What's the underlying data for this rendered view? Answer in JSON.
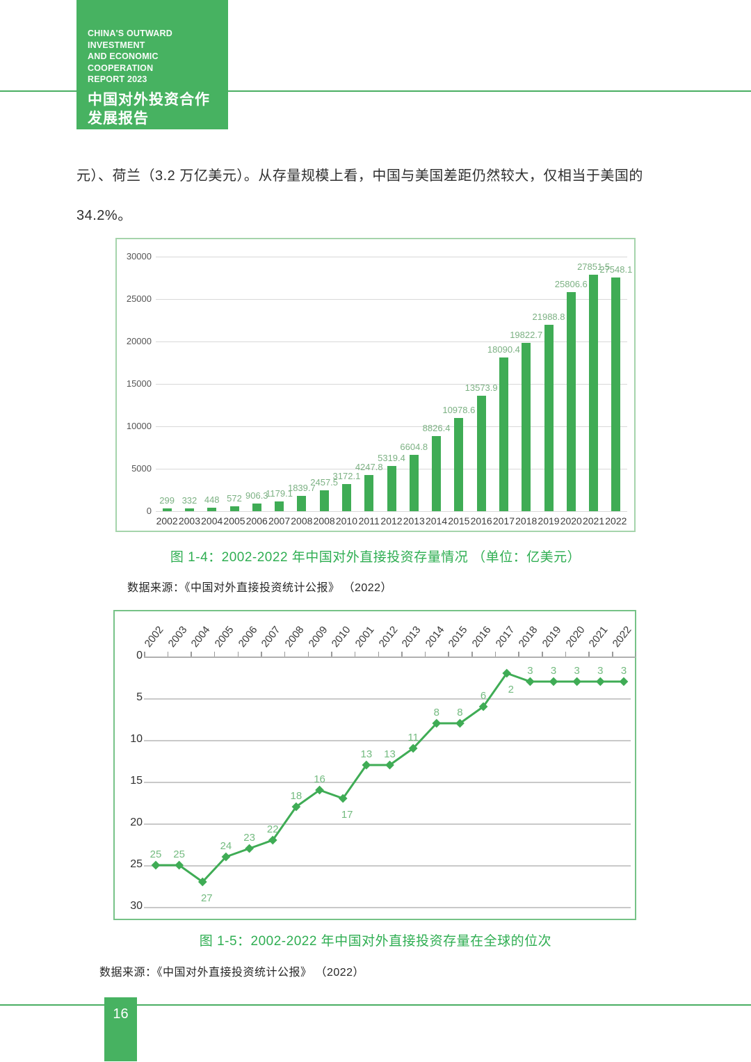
{
  "header": {
    "title_en_line1": "CHINA'S OUTWARD INVESTMENT",
    "title_en_line2": "AND ECONOMIC COOPERATION",
    "title_en_line3": "REPORT 2023",
    "title_cn_line1": "中国对外投资合作",
    "title_cn_line2": "发展报告",
    "year": "2023"
  },
  "body": {
    "paragraph_line1": "元）、荷兰（3.2 万亿美元）。从存量规模上看，中国与美国差距仍然较大，仅相当于美国的",
    "paragraph_line2": "34.2%。"
  },
  "figure1": {
    "caption": "图 1-4：2002-2022 年中国对外直接投资存量情况 （单位：亿美元）",
    "source": "数据来源：《中国对外直接投资统计公报》 （2022）"
  },
  "figure2": {
    "caption": "图 1-5：2002-2022 年中国对外直接投资存量在全球的位次",
    "source": "数据来源：《中国对外直接投资统计公报》 （2022）"
  },
  "footer": {
    "page_number": "16"
  },
  "colors": {
    "brand_green": "#47b261",
    "bar_green": "#3fac55",
    "value_label_green": "#7cb183",
    "caption_green": "#2fae52",
    "gridline_gray": "#d8d8d8"
  },
  "chart_data": [
    {
      "type": "bar",
      "title": "图 1-4：2002-2022 年中国对外直接投资存量情况（单位：亿美元）",
      "categories": [
        "2002",
        "2003",
        "2004",
        "2005",
        "2006",
        "2007",
        "2008",
        "2008",
        "2010",
        "2011",
        "2012",
        "2013",
        "2014",
        "2015",
        "2016",
        "2017",
        "2018",
        "2019",
        "2020",
        "2021",
        "2022"
      ],
      "values": [
        299,
        332,
        448,
        572,
        906.3,
        1179.1,
        1839.7,
        2457.5,
        3172.1,
        4247.8,
        5319.4,
        6604.8,
        8826.4,
        10978.6,
        13573.9,
        18090.4,
        19822.7,
        21988.8,
        25806.6,
        27851.5,
        27548.1
      ],
      "value_labels": [
        "299",
        "332",
        "448",
        "572",
        "906.3",
        "1179.1",
        "1839.7",
        "2457.5",
        "3172.1",
        "4247.8",
        "5319.4",
        "6604.8",
        "8826.4",
        "10978.6",
        "13573.9",
        "18090.4",
        "19822.7",
        "21988.8",
        "25806.6",
        "27851.5",
        "27548.1"
      ],
      "xlabel": "",
      "ylabel": "",
      "ylim": [
        0,
        30000
      ],
      "yticks": [
        0,
        5000,
        10000,
        15000,
        20000,
        25000,
        30000
      ],
      "grid": true,
      "legend": "none"
    },
    {
      "type": "line",
      "title": "图 1-5：2002-2022 年中国对外直接投资存量在全球的位次",
      "x": [
        "2002",
        "2003",
        "2004",
        "2005",
        "2006",
        "2007",
        "2008",
        "2009",
        "2010",
        "2001",
        "2012",
        "2013",
        "2014",
        "2015",
        "2016",
        "2017",
        "2018",
        "2019",
        "2020",
        "2021",
        "2022"
      ],
      "values": [
        25,
        25,
        27,
        24,
        23,
        22,
        18,
        16,
        17,
        13,
        13,
        11,
        8,
        8,
        6,
        2,
        3,
        3,
        3,
        3,
        3
      ],
      "label_positions": [
        "above",
        "above",
        "below",
        "above",
        "above",
        "above",
        "above",
        "above",
        "below",
        "above",
        "above",
        "above",
        "above",
        "above",
        "above",
        "below",
        "above",
        "above",
        "above",
        "above",
        "above"
      ],
      "xlabel": "",
      "ylabel": "",
      "ylim": [
        0,
        30
      ],
      "yticks": [
        0,
        5,
        10,
        15,
        20,
        25,
        30
      ],
      "y_inverted": true,
      "x_axis_position": "top",
      "grid": true,
      "legend": "none",
      "marker": "diamond"
    }
  ]
}
